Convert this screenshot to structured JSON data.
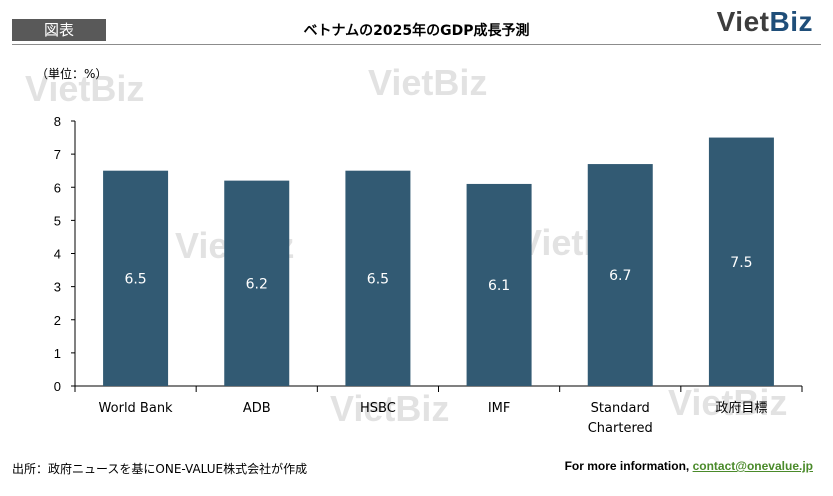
{
  "header": {
    "tag": "図表",
    "title": "ベトナムの2025年のGDP成長予測",
    "logo_viet": "Viet",
    "logo_biz": "Biz"
  },
  "watermark": "VietBiz",
  "chart_data": {
    "type": "bar",
    "unit_label": "（単位：%）",
    "categories": [
      [
        "World Bank"
      ],
      [
        "ADB"
      ],
      [
        "HSBC"
      ],
      [
        "IMF"
      ],
      [
        "Standard",
        "Chartered"
      ],
      [
        "政府目標"
      ]
    ],
    "values": [
      6.5,
      6.2,
      6.5,
      6.1,
      6.7,
      7.5
    ],
    "value_labels": [
      "6.5",
      "6.2",
      "6.5",
      "6.1",
      "6.7",
      "7.5"
    ],
    "ylim": [
      0,
      8
    ],
    "yticks": [
      0,
      1,
      2,
      3,
      4,
      5,
      6,
      7,
      8
    ],
    "bar_color": "#325a73",
    "label_color": "#ffffff",
    "grid": false
  },
  "footer": {
    "source": "出所：政府ニュースを基にONE-VALUE株式会社が作成",
    "more_prefix": "For more information,",
    "contact": "contact@onevalue.jp"
  }
}
